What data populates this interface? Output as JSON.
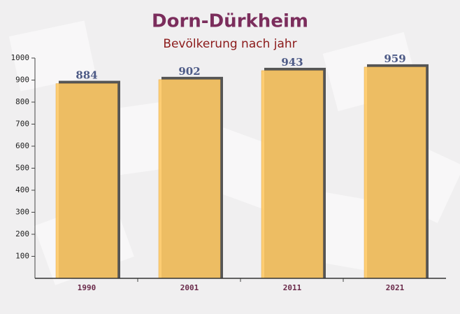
{
  "chart_data": {
    "type": "bar",
    "title": "Dorn-Dürkheim",
    "subtitle": "Bevölkerung nach jahr",
    "categories": [
      "1990",
      "2001",
      "2011",
      "2021"
    ],
    "values": [
      884,
      902,
      943,
      959
    ],
    "color": "#fec965",
    "ylim": [
      0,
      1000
    ],
    "yticks": [
      100,
      200,
      300,
      400,
      500,
      600,
      700,
      800,
      900,
      1000
    ]
  }
}
